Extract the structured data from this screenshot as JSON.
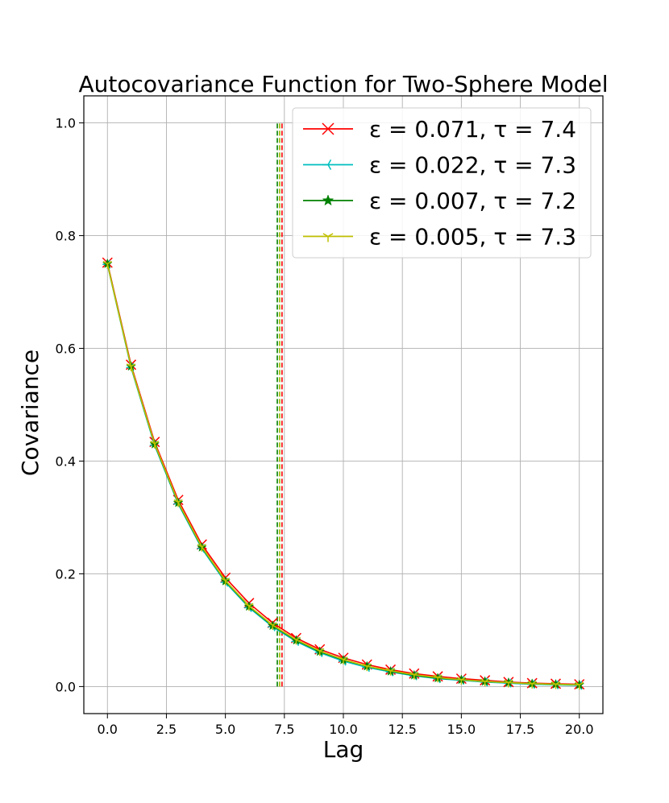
{
  "chart_data": {
    "type": "line",
    "title": "Autocovariance Function for Two-Sphere Model",
    "xlabel": "Lag",
    "ylabel": "Covariance",
    "xlim": [
      -1.0,
      21.0
    ],
    "ylim": [
      -0.048,
      1.048
    ],
    "xticks": [
      "0.0",
      "2.5",
      "5.0",
      "7.5",
      "10.0",
      "12.5",
      "15.0",
      "17.5",
      "20.0"
    ],
    "xtick_values": [
      0,
      2.5,
      5,
      7.5,
      10,
      12.5,
      15,
      17.5,
      20
    ],
    "yticks": [
      "0.0",
      "0.2",
      "0.4",
      "0.6",
      "0.8",
      "1.0"
    ],
    "ytick_values": [
      0,
      0.2,
      0.4,
      0.6,
      0.8,
      1.0
    ],
    "grid": true,
    "legend_position": "top-right",
    "x": [
      0,
      1,
      2,
      3,
      4,
      5,
      6,
      7,
      8,
      9,
      10,
      11,
      12,
      13,
      14,
      15,
      16,
      17,
      18,
      19,
      20
    ],
    "series": [
      {
        "legend_prefix": "ε = 0.071, ",
        "legend_suffix": "τ = 7.4",
        "color": "#ff0000",
        "marker": "x",
        "tau": 7.4,
        "values": [
          0.752,
          0.571,
          0.434,
          0.331,
          0.252,
          0.193,
          0.148,
          0.113,
          0.086,
          0.066,
          0.051,
          0.039,
          0.03,
          0.023,
          0.018,
          0.014,
          0.011,
          0.008,
          0.006,
          0.005,
          0.004
        ]
      },
      {
        "legend_prefix": "ε = 0.022, ",
        "legend_suffix": "τ = 7.3",
        "color": "#00bfbf",
        "marker": "tri_left",
        "tau": 7.3,
        "values": [
          0.749,
          0.566,
          0.428,
          0.324,
          0.245,
          0.185,
          0.14,
          0.106,
          0.08,
          0.06,
          0.045,
          0.034,
          0.026,
          0.019,
          0.014,
          0.011,
          0.008,
          0.006,
          0.004,
          0.003,
          0.002
        ]
      },
      {
        "legend_prefix": "ε = 0.007, ",
        "legend_suffix": "τ = 7.2",
        "color": "#008000",
        "marker": "star",
        "tau": 7.2,
        "values": [
          0.75,
          0.568,
          0.43,
          0.326,
          0.247,
          0.187,
          0.142,
          0.108,
          0.082,
          0.062,
          0.047,
          0.036,
          0.027,
          0.02,
          0.015,
          0.012,
          0.009,
          0.007,
          0.005,
          0.004,
          0.003
        ]
      },
      {
        "legend_prefix": "ε = 0.005, ",
        "legend_suffix": "τ = 7.3",
        "color": "#bfbf00",
        "marker": "tri_down",
        "tau": 7.3,
        "values": [
          0.75,
          0.568,
          0.431,
          0.327,
          0.248,
          0.188,
          0.143,
          0.109,
          0.083,
          0.063,
          0.048,
          0.036,
          0.028,
          0.021,
          0.016,
          0.012,
          0.009,
          0.007,
          0.005,
          0.004,
          0.003
        ]
      }
    ],
    "vlines": [
      {
        "x": 7.4,
        "color": "#ff0000"
      },
      {
        "x": 7.3,
        "color": "#00bfbf"
      },
      {
        "x": 7.2,
        "color": "#008000"
      },
      {
        "x": 7.3,
        "color": "#bfbf00"
      }
    ]
  }
}
